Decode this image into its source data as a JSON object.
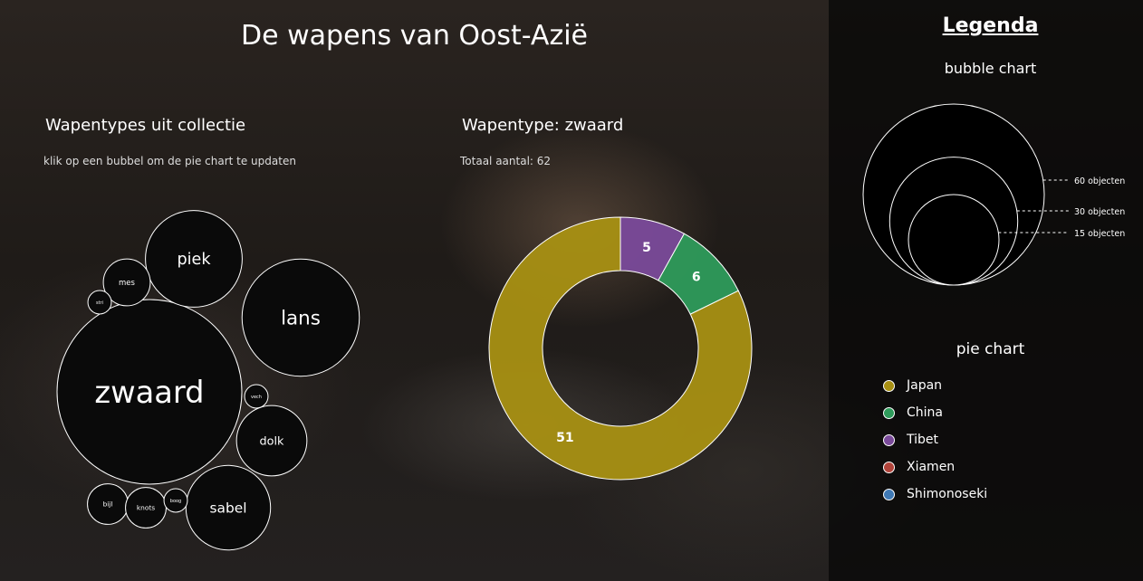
{
  "page": {
    "title": "De wapens van Oost-Azië"
  },
  "bubble": {
    "title": "Wapentypes uit collectie",
    "hint": "klik op een bubbel om de pie chart te updaten"
  },
  "pie": {
    "title": "Wapentype: zwaard",
    "total": "Totaal aantal: 62"
  },
  "legend": {
    "title": "Legenda",
    "bubble_title": "bubble chart",
    "bubble_scale": [
      {
        "label": "60 objecten",
        "count": 60
      },
      {
        "label": "30 objecten",
        "count": 30
      },
      {
        "label": "15 objecten",
        "count": 15
      }
    ],
    "pie_title": "pie chart",
    "items": [
      {
        "label": "Japan",
        "color": "#a89013"
      },
      {
        "label": "China",
        "color": "#2e9b5b"
      },
      {
        "label": "Tibet",
        "color": "#7a4a9a"
      },
      {
        "label": "Xiamen",
        "color": "#b0433a"
      },
      {
        "label": "Shimonoseki",
        "color": "#3f79b5"
      }
    ]
  },
  "chart_data": [
    {
      "type": "bubble",
      "series": [
        {
          "name": "zwaard",
          "value": 62
        },
        {
          "name": "lans",
          "value": 25
        },
        {
          "name": "piek",
          "value": 17
        },
        {
          "name": "sabel",
          "value": 13
        },
        {
          "name": "dolk",
          "value": 9
        },
        {
          "name": "mes",
          "value": 4
        },
        {
          "name": "bijl",
          "value": 3
        },
        {
          "name": "knots",
          "value": 3
        },
        {
          "name": "boog",
          "value": 1
        },
        {
          "name": "vech",
          "value": 1
        },
        {
          "name": "stri",
          "value": 1
        }
      ]
    },
    {
      "type": "pie",
      "title": "Wapentype: zwaard",
      "slices": [
        {
          "label": "Japan",
          "value": 51,
          "color": "#a89013"
        },
        {
          "label": "China",
          "value": 6,
          "color": "#2e9b5b"
        },
        {
          "label": "Tibet",
          "value": 5,
          "color": "#7a4a9a"
        }
      ]
    }
  ]
}
